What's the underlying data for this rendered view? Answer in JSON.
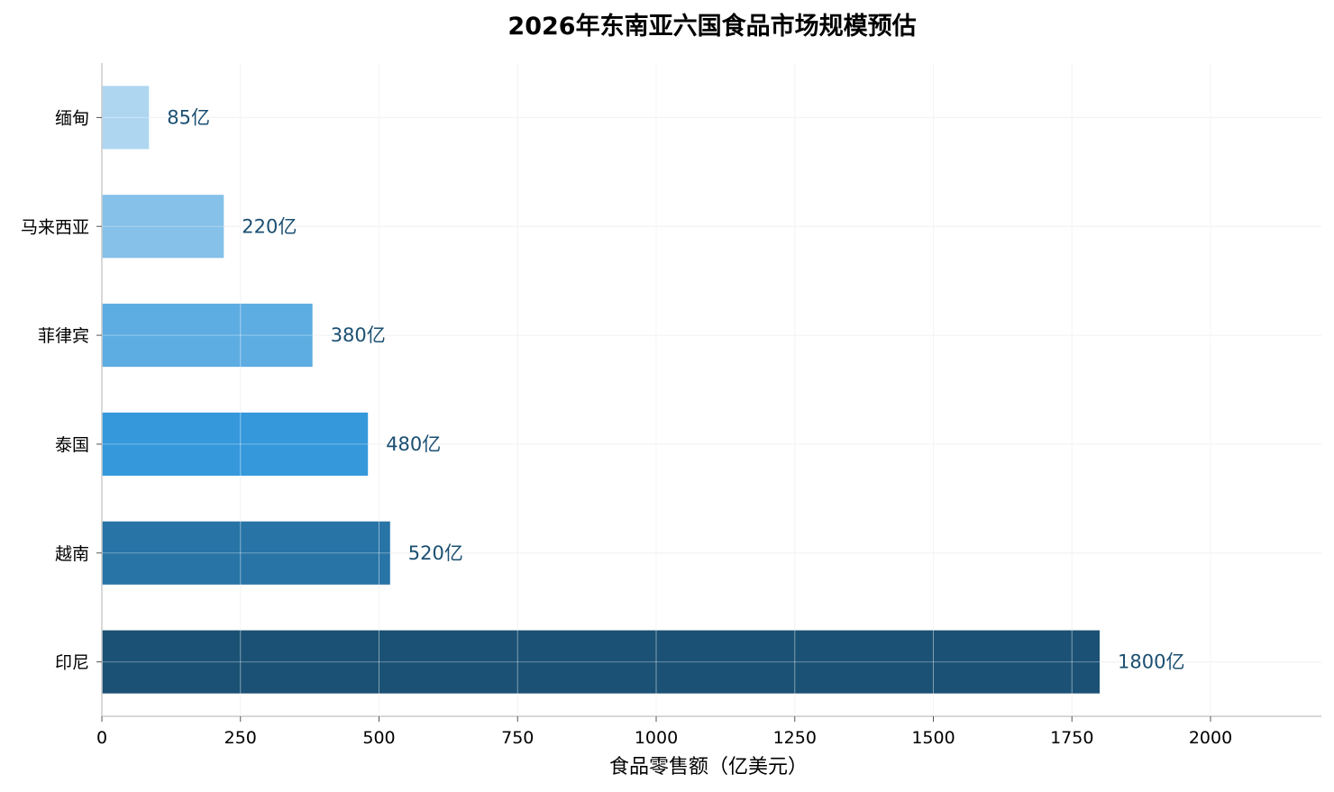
{
  "chart_data": {
    "type": "bar",
    "orientation": "horizontal",
    "title": "2026年东南亚六国食品市场规模预估",
    "xlabel": "食品零售额（亿美元）",
    "ylabel": "",
    "categories": [
      "印尼",
      "越南",
      "泰国",
      "菲律宾",
      "马来西亚",
      "缅甸"
    ],
    "values": [
      1800,
      520,
      480,
      380,
      220,
      85
    ],
    "data_labels": [
      "1800亿",
      "520亿",
      "480亿",
      "380亿",
      "220亿",
      "85亿"
    ],
    "bar_colors": [
      "#1b5174",
      "#2874a6",
      "#3498db",
      "#5dade2",
      "#85c1e9",
      "#aed6f1"
    ],
    "label_color": "#1b4f72",
    "xlim": [
      0,
      2200
    ],
    "xticks": [
      0,
      250,
      500,
      750,
      1000,
      1250,
      1500,
      1750,
      2000
    ],
    "xtick_labels": [
      "0",
      "250",
      "500",
      "750",
      "1000",
      "1250",
      "1500",
      "1750",
      "2000"
    ],
    "grid": true,
    "legend": "none"
  }
}
